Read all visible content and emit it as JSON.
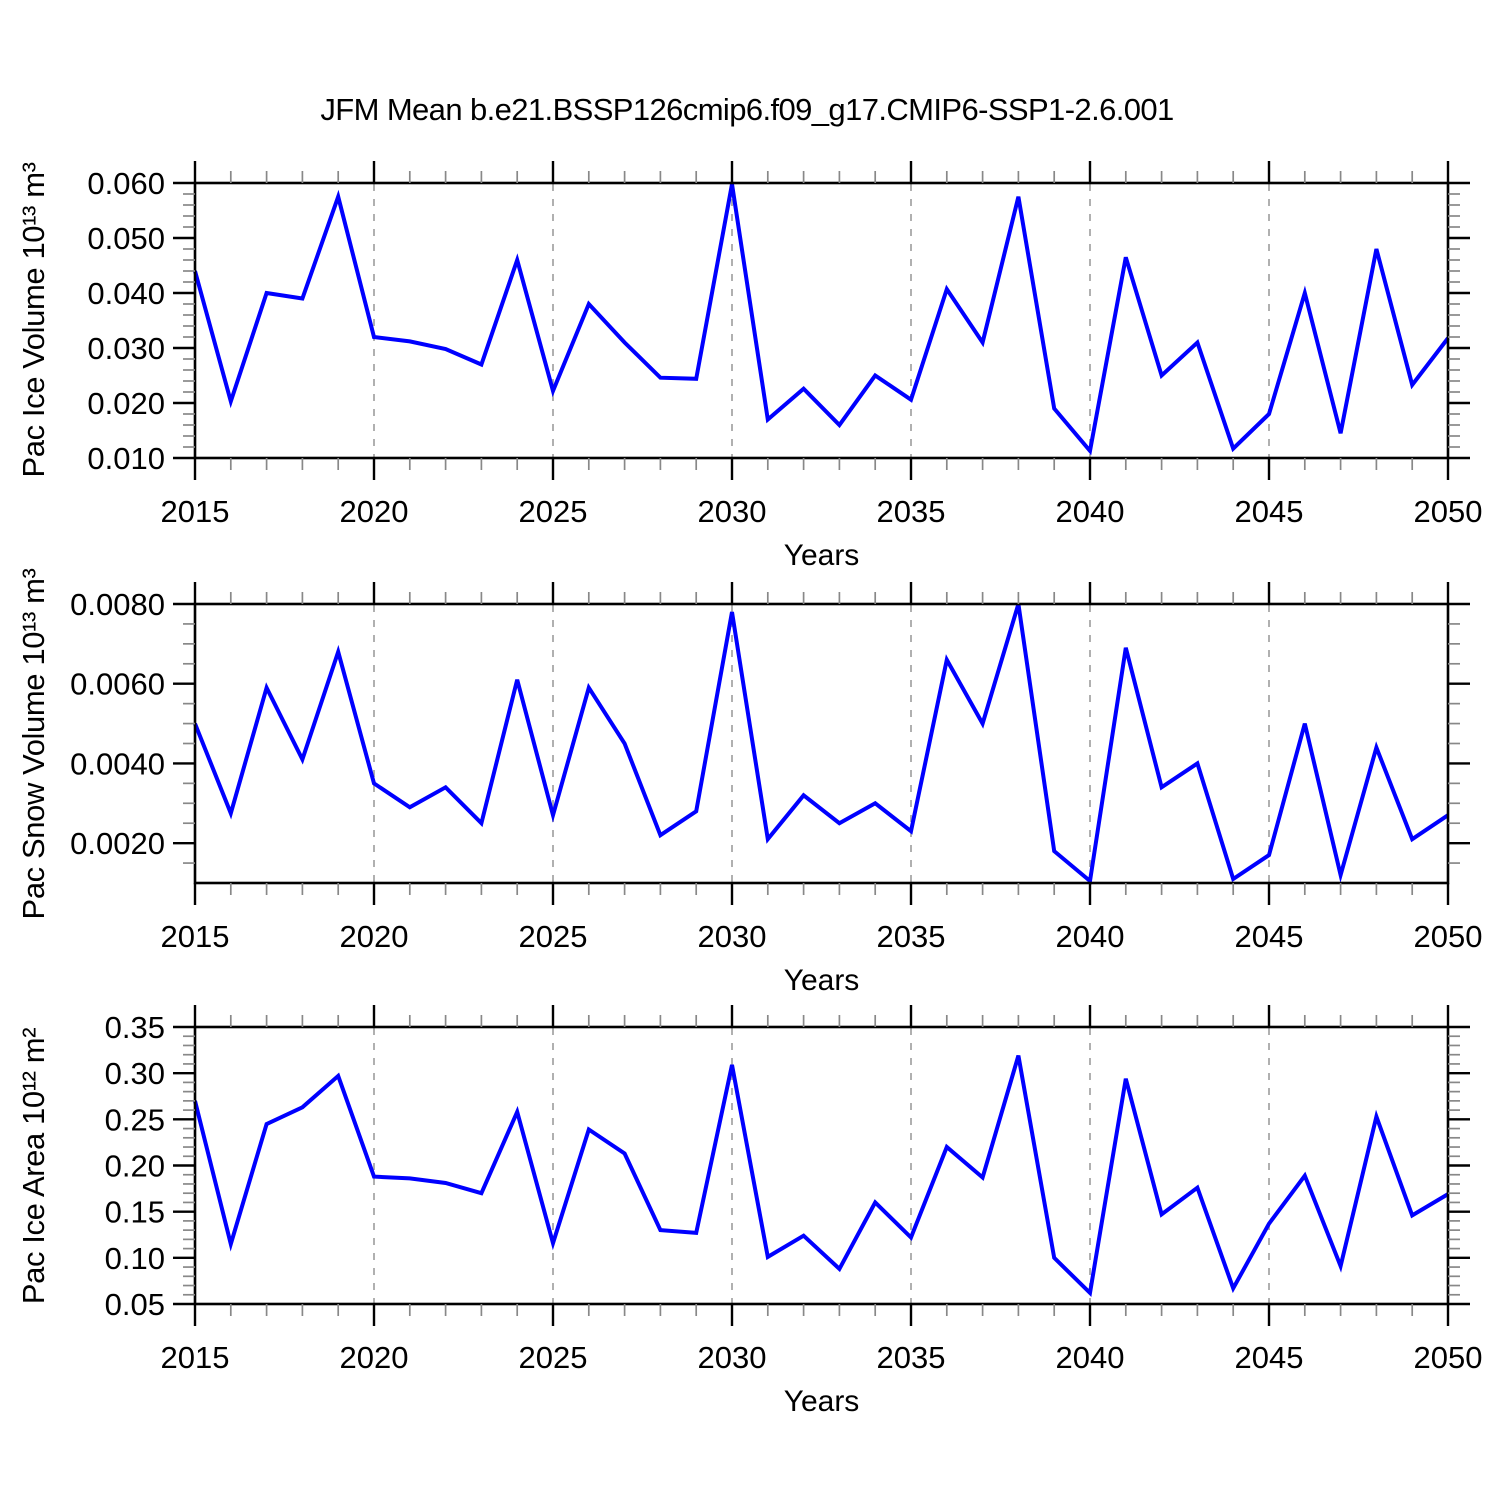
{
  "page": {
    "title": "JFM Mean b.e21.BSSP126cmip6.f09_g17.CMIP6-SSP1-2.6.001",
    "background": "#ffffff"
  },
  "colors": {
    "line": "#0000ff",
    "grid": "#b0b0b0",
    "axis": "#000000",
    "minor_tick": "#888888"
  },
  "chart_data": [
    {
      "type": "line",
      "title": "",
      "ylabel": "Pac Ice Volume 10¹³ m³",
      "xlabel": "Years",
      "x": [
        2015,
        2016,
        2017,
        2018,
        2019,
        2020,
        2021,
        2022,
        2023,
        2024,
        2025,
        2026,
        2027,
        2028,
        2029,
        2030,
        2031,
        2032,
        2033,
        2034,
        2035,
        2036,
        2037,
        2038,
        2039,
        2040,
        2041,
        2042,
        2043,
        2044,
        2045,
        2046,
        2047,
        2048,
        2049,
        2050
      ],
      "values": [
        0.044,
        0.0203,
        0.04,
        0.039,
        0.0575,
        0.032,
        0.0312,
        0.0298,
        0.027,
        0.046,
        0.0222,
        0.038,
        0.031,
        0.0246,
        0.0244,
        0.0598,
        0.017,
        0.0226,
        0.016,
        0.025,
        0.0206,
        0.0407,
        0.031,
        0.0575,
        0.019,
        0.0113,
        0.0465,
        0.025,
        0.031,
        0.0117,
        0.018,
        0.04,
        0.0145,
        0.048,
        0.0233,
        0.0318
      ],
      "xlim": [
        2015,
        2050
      ],
      "ylim": [
        0.01,
        0.06
      ],
      "xticks": [
        2015,
        2020,
        2025,
        2030,
        2035,
        2040,
        2045,
        2050
      ],
      "xtick_labels": [
        "2015",
        "2020",
        "2025",
        "2030",
        "2035",
        "2040",
        "2045",
        "2050"
      ],
      "xminor_step": 1,
      "ytick_values": [
        0.06,
        0.05,
        0.04,
        0.03,
        0.02,
        0.01
      ],
      "ytick_labels": [
        "0.060",
        "0.050",
        "0.040",
        "0.030",
        "0.020",
        "0.010"
      ],
      "yminor_step": 0.002,
      "gridline_years": [
        2020,
        2025,
        2030,
        2035,
        2040,
        2045
      ],
      "grid": "vertical-dashed",
      "legend": "none"
    },
    {
      "type": "line",
      "title": "",
      "ylabel": "Pac Snow Volume 10¹³ m³",
      "xlabel": "Years",
      "x": [
        2015,
        2016,
        2017,
        2018,
        2019,
        2020,
        2021,
        2022,
        2023,
        2024,
        2025,
        2026,
        2027,
        2028,
        2029,
        2030,
        2031,
        2032,
        2033,
        2034,
        2035,
        2036,
        2037,
        2038,
        2039,
        2040,
        2041,
        2042,
        2043,
        2044,
        2045,
        2046,
        2047,
        2048,
        2049,
        2050
      ],
      "values": [
        0.005,
        0.00275,
        0.0059,
        0.0041,
        0.0068,
        0.0035,
        0.0029,
        0.0034,
        0.0025,
        0.0061,
        0.0027,
        0.0059,
        0.0045,
        0.0022,
        0.0028,
        0.0078,
        0.0021,
        0.0032,
        0.0025,
        0.003,
        0.0023,
        0.0066,
        0.005,
        0.008,
        0.0018,
        0.00105,
        0.0069,
        0.0034,
        0.004,
        0.0011,
        0.0017,
        0.005,
        0.0012,
        0.0044,
        0.0021,
        0.0027
      ],
      "xlim": [
        2015,
        2050
      ],
      "ylim": [
        0.001,
        0.008
      ],
      "xticks": [
        2015,
        2020,
        2025,
        2030,
        2035,
        2040,
        2045,
        2050
      ],
      "xtick_labels": [
        "2015",
        "2020",
        "2025",
        "2030",
        "2035",
        "2040",
        "2045",
        "2050"
      ],
      "xminor_step": 1,
      "ytick_values": [
        0.008,
        0.006,
        0.004,
        0.002
      ],
      "ytick_labels": [
        "0.0080",
        "0.0060",
        "0.0040",
        "0.0020"
      ],
      "yminor_step": 0.0005,
      "gridline_years": [
        2020,
        2025,
        2030,
        2035,
        2040,
        2045
      ],
      "grid": "vertical-dashed",
      "legend": "none"
    },
    {
      "type": "line",
      "title": "",
      "ylabel": "Pac Ice Area 10¹² m²",
      "xlabel": "Years",
      "x": [
        2015,
        2016,
        2017,
        2018,
        2019,
        2020,
        2021,
        2022,
        2023,
        2024,
        2025,
        2026,
        2027,
        2028,
        2029,
        2030,
        2031,
        2032,
        2033,
        2034,
        2035,
        2036,
        2037,
        2038,
        2039,
        2040,
        2041,
        2042,
        2043,
        2044,
        2045,
        2046,
        2047,
        2048,
        2049,
        2050
      ],
      "values": [
        0.27,
        0.115,
        0.245,
        0.263,
        0.297,
        0.188,
        0.186,
        0.181,
        0.17,
        0.258,
        0.116,
        0.239,
        0.213,
        0.13,
        0.127,
        0.309,
        0.101,
        0.124,
        0.088,
        0.16,
        0.122,
        0.22,
        0.187,
        0.319,
        0.1,
        0.062,
        0.294,
        0.147,
        0.176,
        0.067,
        0.137,
        0.189,
        0.091,
        0.253,
        0.146,
        0.169
      ],
      "xlim": [
        2015,
        2050
      ],
      "ylim": [
        0.05,
        0.35
      ],
      "xticks": [
        2015,
        2020,
        2025,
        2030,
        2035,
        2040,
        2045,
        2050
      ],
      "xtick_labels": [
        "2015",
        "2020",
        "2025",
        "2030",
        "2035",
        "2040",
        "2045",
        "2050"
      ],
      "xminor_step": 1,
      "ytick_values": [
        0.35,
        0.3,
        0.25,
        0.2,
        0.15,
        0.1,
        0.05
      ],
      "ytick_labels": [
        "0.35",
        "0.30",
        "0.25",
        "0.20",
        "0.15",
        "0.10",
        "0.05"
      ],
      "yminor_step": 0.01,
      "gridline_years": [
        2020,
        2025,
        2030,
        2035,
        2040,
        2045
      ],
      "grid": "vertical-dashed",
      "legend": "none"
    }
  ]
}
